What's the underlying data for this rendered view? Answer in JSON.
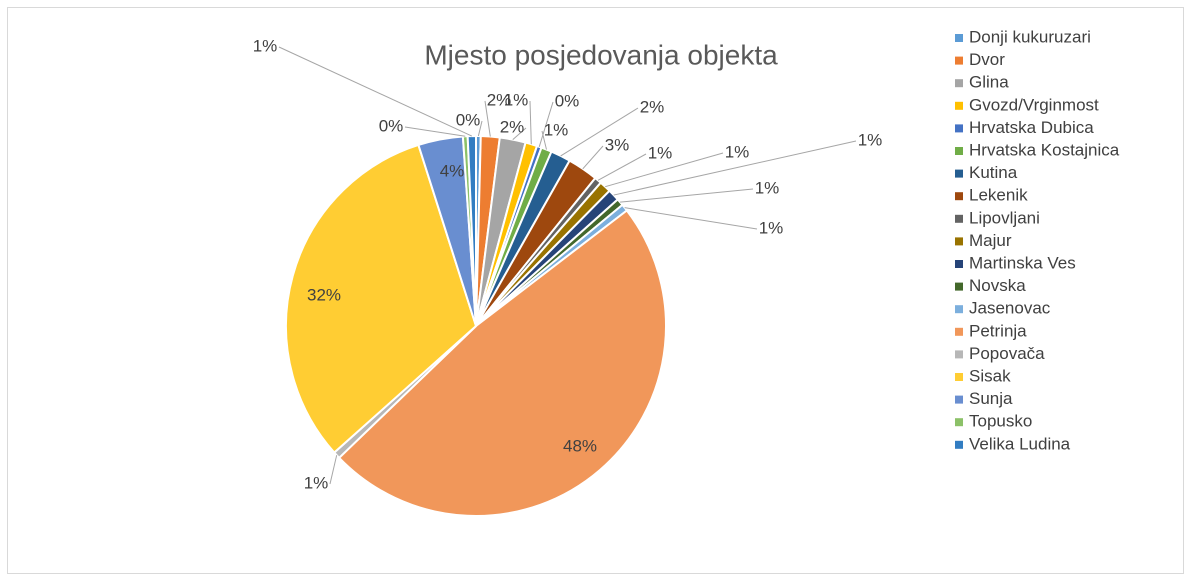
{
  "chart_data": {
    "type": "pie",
    "title": "Mjesto posjedovanja objekta",
    "categories": [
      "Donji kukuruzari",
      "Dvor",
      "Glina",
      "Gvozd/Vrginmost",
      "Hrvatska Dubica",
      "Hrvatska Kostajnica",
      "Kutina",
      "Lekenik",
      "Lipovljani",
      "Majur",
      "Martinska Ves",
      "Novska",
      "Jasenovac",
      "Petrinja",
      "Popovača",
      "Sisak",
      "Sunja",
      "Topusko",
      "Velika Ludina"
    ],
    "values": [
      0.4,
      1.6,
      2.2,
      1.0,
      0.4,
      0.9,
      1.7,
      2.6,
      0.6,
      1.0,
      1.0,
      0.6,
      0.6,
      48.2,
      0.6,
      31.7,
      3.8,
      0.4,
      0.7
    ],
    "value_labels": [
      "0%",
      "2%",
      "2%",
      "1%",
      "0%",
      "1%",
      "2%",
      "3%",
      "1%",
      "1%",
      "1%",
      "1%",
      "1%",
      "48%",
      "1%",
      "32%",
      "4%",
      "0%",
      "1%"
    ],
    "colors": [
      "#5b9bd5",
      "#ed7d31",
      "#a5a5a5",
      "#ffc000",
      "#4472c4",
      "#70ad47",
      "#255e91",
      "#9e480e",
      "#636363",
      "#997300",
      "#264478",
      "#43682b",
      "#7cafdd",
      "#f1975a",
      "#b7b7b7",
      "#ffcd33",
      "#698ed0",
      "#8cc168",
      "#327dc2"
    ],
    "legend": "right"
  }
}
